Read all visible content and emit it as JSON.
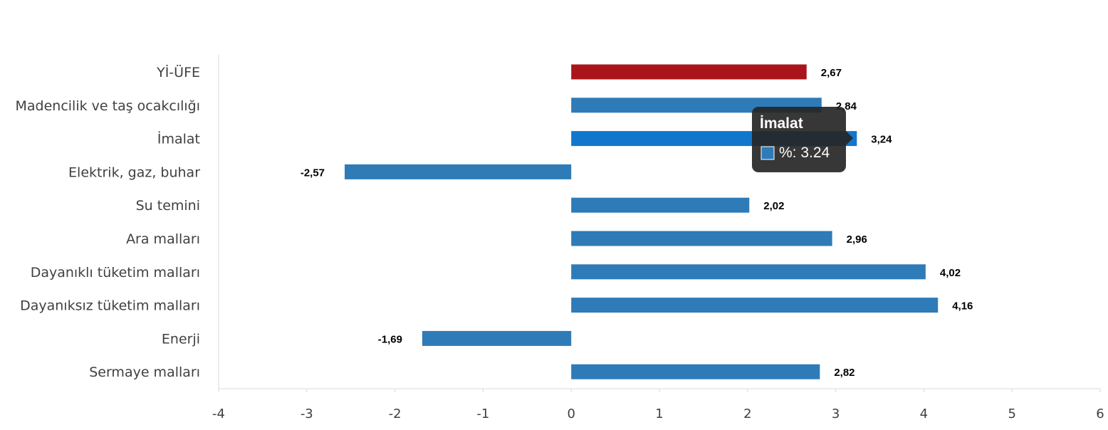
{
  "chart_data": {
    "type": "bar",
    "orientation": "horizontal",
    "categories": [
      "Yİ-ÜFE",
      "Madencilik ve taş ocakcılığı",
      "İmalat",
      "Elektrik, gaz, buhar",
      "Su temini",
      "Ara malları",
      "Dayanıklı tüketim malları",
      "Dayanıksız tüketim malları",
      "Enerji",
      "Sermaye malları"
    ],
    "values": [
      2.67,
      2.84,
      3.24,
      -2.57,
      2.02,
      2.96,
      4.02,
      4.16,
      -1.69,
      2.82
    ],
    "value_labels": [
      "2,67",
      "2,84",
      "3,24",
      "-2,57",
      "2,02",
      "2,96",
      "4,02",
      "4,16",
      "-1,69",
      "2,82"
    ],
    "bar_colors": [
      "#AA151B",
      "#2E7BB8",
      "#1177CC",
      "#2E7BB8",
      "#2E7BB8",
      "#2E7BB8",
      "#2E7BB8",
      "#2E7BB8",
      "#2E7BB8",
      "#2E7BB8"
    ],
    "xlim": [
      -4,
      6
    ],
    "x_ticks": [
      "-4",
      "-3",
      "-2",
      "-1",
      "0",
      "1",
      "2",
      "3",
      "4",
      "5",
      "6"
    ],
    "grid": false,
    "legend": "none",
    "title": "",
    "xlabel": "",
    "ylabel": ""
  },
  "tooltip": {
    "title": "İmalat",
    "text": "%: 3.24",
    "swatch_color": "#2E7BB8",
    "target_index": 2
  }
}
